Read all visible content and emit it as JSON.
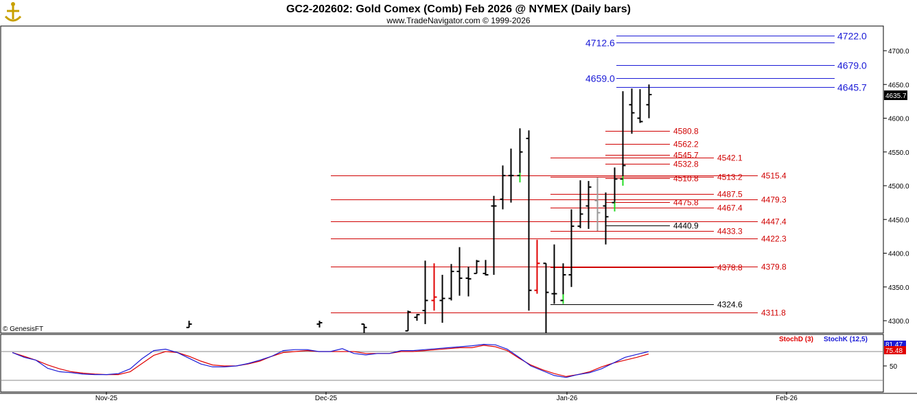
{
  "window": {
    "title": "GC2-202602:  Gold Comex (Comb) Feb 2026 @ NYMEX  (Daily bars)",
    "subtitle": "www.TradeNavigator.com © 1999-2026",
    "logo_icon": "anchor-icon",
    "copyright": "© GenesisFT"
  },
  "colors": {
    "up_bar": "#000000",
    "down_bar": "#e00000",
    "green_wick": "#22dd22",
    "red_level": "#d00000",
    "blue_level": "#1a1ad6",
    "stoch_d": "#e00000",
    "stoch_k": "#1a1ad6",
    "price_flag": "#000000",
    "stoch_flag_k": "#1a1ad6",
    "stoch_flag_d": "#e00000"
  },
  "chart_data": {
    "type": "ohlc",
    "price_axis": {
      "ticks": [
        "4700.0",
        "4650.0",
        "4600.0",
        "4550.0",
        "4500.0",
        "4450.0",
        "4400.0",
        "4350.0",
        "4300.0"
      ],
      "current_price": "4635.7"
    },
    "x_axis": {
      "labels": [
        "Nov-25",
        "Dec-25",
        "Jan-26",
        "Feb-26"
      ]
    },
    "price_bars": [
      {
        "o": 4290,
        "h": 4300,
        "l": 4290,
        "c": 4295,
        "color": "up"
      },
      {
        "o": 4295,
        "h": 4300,
        "l": 4290,
        "c": 4297,
        "color": "up"
      },
      {
        "o": 4295,
        "h": 4290,
        "l": 4280,
        "c": 4290,
        "color": "up"
      },
      {
        "o": 4285,
        "h": 4315,
        "l": 4285,
        "c": 4313,
        "color": "up"
      },
      {
        "o": 4305,
        "h": 4310,
        "l": 4300,
        "c": 4309,
        "color": "up"
      },
      {
        "o": 4315,
        "h": 4389,
        "l": 4295,
        "c": 4330,
        "color": "up"
      },
      {
        "o": 4330,
        "h": 4385,
        "l": 4315,
        "c": 4335,
        "color": "down"
      },
      {
        "o": 4330,
        "h": 4368,
        "l": 4297,
        "c": 4333,
        "color": "up"
      },
      {
        "o": 4333,
        "h": 4384,
        "l": 4330,
        "c": 4373,
        "color": "up"
      },
      {
        "o": 4373,
        "h": 4409,
        "l": 4337,
        "c": 4363,
        "color": "up"
      },
      {
        "o": 4363,
        "h": 4380,
        "l": 4336,
        "c": 4362,
        "color": "up"
      },
      {
        "o": 4370,
        "h": 4390,
        "l": 4370,
        "c": 4388,
        "color": "up"
      },
      {
        "o": 4370,
        "h": 4390,
        "l": 4367,
        "c": 4368,
        "color": "up"
      },
      {
        "o": 4470,
        "h": 4485,
        "l": 4368,
        "c": 4470,
        "color": "up"
      },
      {
        "o": 4480,
        "h": 4530,
        "l": 4465,
        "c": 4515,
        "color": "up"
      },
      {
        "o": 4515,
        "h": 4555,
        "l": 4475,
        "c": 4515,
        "color": "up"
      },
      {
        "o": 4515,
        "h": 4585,
        "l": 4505,
        "c": 4550,
        "color": "green"
      },
      {
        "o": 4570,
        "h": 4582,
        "l": 4315,
        "c": 4345,
        "color": "up"
      },
      {
        "o": 4345,
        "h": 4420,
        "l": 4340,
        "c": 4385,
        "color": "down"
      },
      {
        "o": 4385,
        "h": 4382,
        "l": 4282,
        "c": 4342,
        "color": "up"
      },
      {
        "o": 4340,
        "h": 4413,
        "l": 4325,
        "c": 4340,
        "color": "up"
      },
      {
        "o": 4330,
        "h": 4385,
        "l": 4325,
        "c": 4368,
        "color": "green"
      },
      {
        "o": 4368,
        "h": 4465,
        "l": 4350,
        "c": 4440,
        "color": "up"
      },
      {
        "o": 4440,
        "h": 4508,
        "l": 4437,
        "c": 4458,
        "color": "up"
      },
      {
        "o": 4470,
        "h": 4507,
        "l": 4436,
        "c": 4498,
        "color": "up"
      },
      {
        "o": 4478,
        "h": 4512,
        "l": 4433,
        "c": 4460,
        "color": "gray"
      },
      {
        "o": 4470,
        "h": 4490,
        "l": 4413,
        "c": 4454,
        "color": "up"
      },
      {
        "o": 4475,
        "h": 4527,
        "l": 4462,
        "c": 4510,
        "color": "green"
      },
      {
        "o": 4510,
        "h": 4640,
        "l": 4500,
        "c": 4530,
        "color": "green"
      },
      {
        "o": 4620,
        "h": 4644,
        "l": 4577,
        "c": 4608,
        "color": "up"
      },
      {
        "o": 4600,
        "h": 4643,
        "l": 4593,
        "c": 4595,
        "color": "up"
      },
      {
        "o": 4620,
        "h": 4650,
        "l": 4600,
        "c": 4635,
        "color": "up"
      }
    ],
    "levels": [
      {
        "label": "4722.0",
        "color": "blue"
      },
      {
        "label": "4712.6",
        "color": "blue"
      },
      {
        "label": "4679.0",
        "color": "blue"
      },
      {
        "label": "4659.0",
        "color": "blue"
      },
      {
        "label": "4645.7",
        "color": "blue"
      },
      {
        "label": "4580.8",
        "color": "red"
      },
      {
        "label": "4562.2",
        "color": "red"
      },
      {
        "label": "4545.7",
        "color": "red"
      },
      {
        "label": "4542.1",
        "color": "red"
      },
      {
        "label": "4532.8",
        "color": "red"
      },
      {
        "label": "4515.4",
        "color": "red"
      },
      {
        "label": "4513.2",
        "color": "red"
      },
      {
        "label": "4510.8",
        "color": "red"
      },
      {
        "label": "4487.5",
        "color": "red"
      },
      {
        "label": "4479.3",
        "color": "red"
      },
      {
        "label": "4475.8",
        "color": "red"
      },
      {
        "label": "4467.4",
        "color": "red"
      },
      {
        "label": "4447.4",
        "color": "red"
      },
      {
        "label": "4440.9",
        "color": "black"
      },
      {
        "label": "4433.3",
        "color": "red"
      },
      {
        "label": "4422.3",
        "color": "red"
      },
      {
        "label": "4379.8",
        "color": "red"
      },
      {
        "label": "4378.8",
        "color": "red"
      },
      {
        "label": "4324.6",
        "color": "black"
      },
      {
        "label": "4311.8",
        "color": "red"
      }
    ],
    "stochastic": {
      "legend_d": "StochD (3)",
      "legend_k": "StochK (12,5)",
      "tick": "50",
      "flag_k": "81.47",
      "flag_d": "75.48",
      "k_values": [
        78,
        68,
        62,
        45,
        38,
        36,
        33,
        32,
        32,
        34,
        44,
        65,
        82,
        85,
        78,
        66,
        54,
        48,
        48,
        50,
        55,
        62,
        70,
        82,
        84,
        84,
        80,
        80,
        86,
        76,
        73,
        76,
        76,
        82,
        82,
        84,
        86,
        88,
        90,
        92,
        95,
        94,
        85,
        68,
        50,
        40,
        30,
        26,
        32,
        36,
        44,
        56,
        68,
        74,
        80
      ],
      "d_values": [
        78,
        70,
        62,
        52,
        44,
        38,
        35,
        33,
        32,
        32,
        38,
        55,
        72,
        80,
        78,
        70,
        60,
        52,
        50,
        50,
        54,
        60,
        70,
        78,
        80,
        82,
        80,
        80,
        80,
        80,
        76,
        76,
        76,
        80,
        80,
        82,
        84,
        86,
        88,
        88,
        93,
        90,
        82,
        66,
        52,
        42,
        34,
        28,
        32,
        38,
        48,
        56,
        62,
        68,
        75
      ]
    }
  }
}
